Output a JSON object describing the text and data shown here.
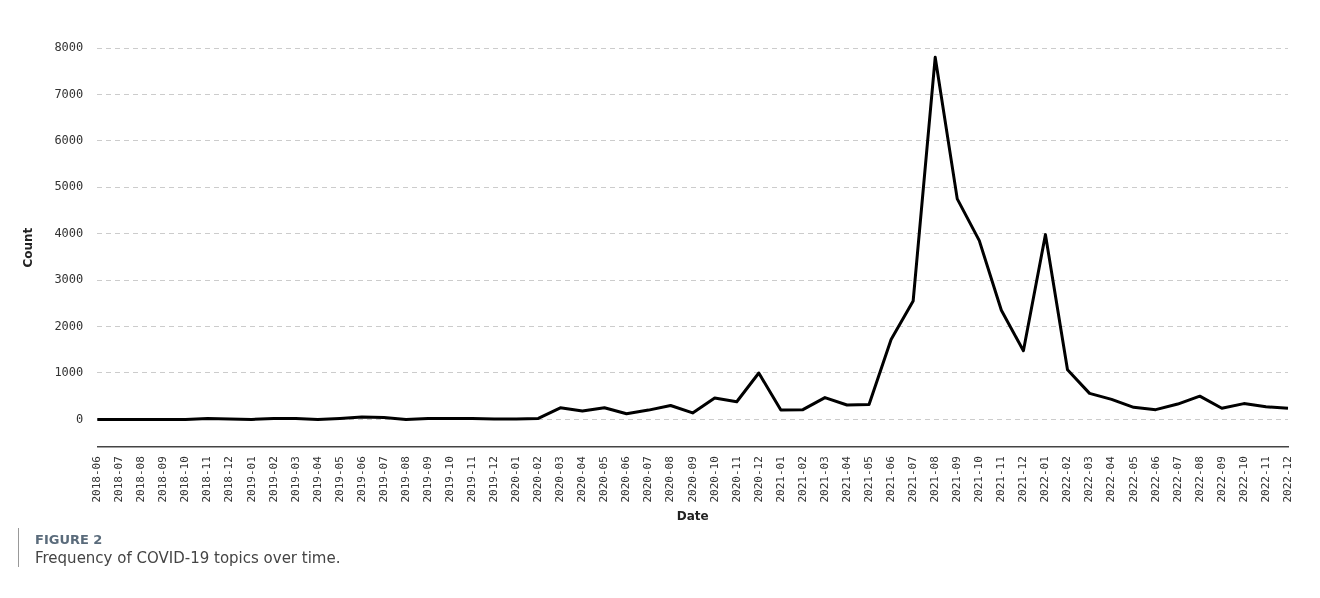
{
  "chart_data": {
    "type": "line",
    "title": "FIGURE 2",
    "subtitle": "Frequency of COVID-19 topics over time.",
    "xlabel": "Date",
    "ylabel": "Count",
    "categories": [
      "2018-06",
      "2018-07",
      "2018-08",
      "2018-09",
      "2018-10",
      "2018-11",
      "2018-12",
      "2019-01",
      "2019-02",
      "2019-03",
      "2019-04",
      "2019-05",
      "2019-06",
      "2019-07",
      "2019-08",
      "2019-09",
      "2019-10",
      "2019-11",
      "2019-12",
      "2020-01",
      "2020-02",
      "2020-03",
      "2020-04",
      "2020-05",
      "2020-06",
      "2020-07",
      "2020-08",
      "2020-09",
      "2020-10",
      "2020-11",
      "2020-12",
      "2021-01",
      "2021-02",
      "2021-03",
      "2021-04",
      "2021-05",
      "2021-06",
      "2021-07",
      "2021-08",
      "2021-09",
      "2021-10",
      "2021-11",
      "2021-12",
      "2022-01",
      "2022-02",
      "2022-03",
      "2022-04",
      "2022-05",
      "2022-06",
      "2022-07",
      "2022-08",
      "2022-09",
      "2022-10",
      "2022-11",
      "2022-12"
    ],
    "series": [
      {
        "color": "#000000",
        "values": [
          0,
          0,
          0,
          0,
          0,
          20,
          10,
          0,
          20,
          20,
          0,
          20,
          50,
          40,
          0,
          20,
          20,
          20,
          10,
          10,
          20,
          250,
          180,
          250,
          120,
          200,
          300,
          140,
          460,
          380,
          1000,
          200,
          210,
          470,
          310,
          320,
          1720,
          2550,
          7800,
          4750,
          3850,
          2350,
          1480,
          3980,
          1070,
          560,
          430,
          260,
          210,
          330,
          500,
          240,
          340,
          270,
          240
        ]
      }
    ],
    "ylim": [
      -600,
      8000
    ],
    "yticks": [
      0,
      1000,
      2000,
      3000,
      4000,
      5000,
      6000,
      7000,
      8000
    ],
    "grid": "y",
    "legend": false,
    "marker": "none",
    "line_style": "solid"
  }
}
